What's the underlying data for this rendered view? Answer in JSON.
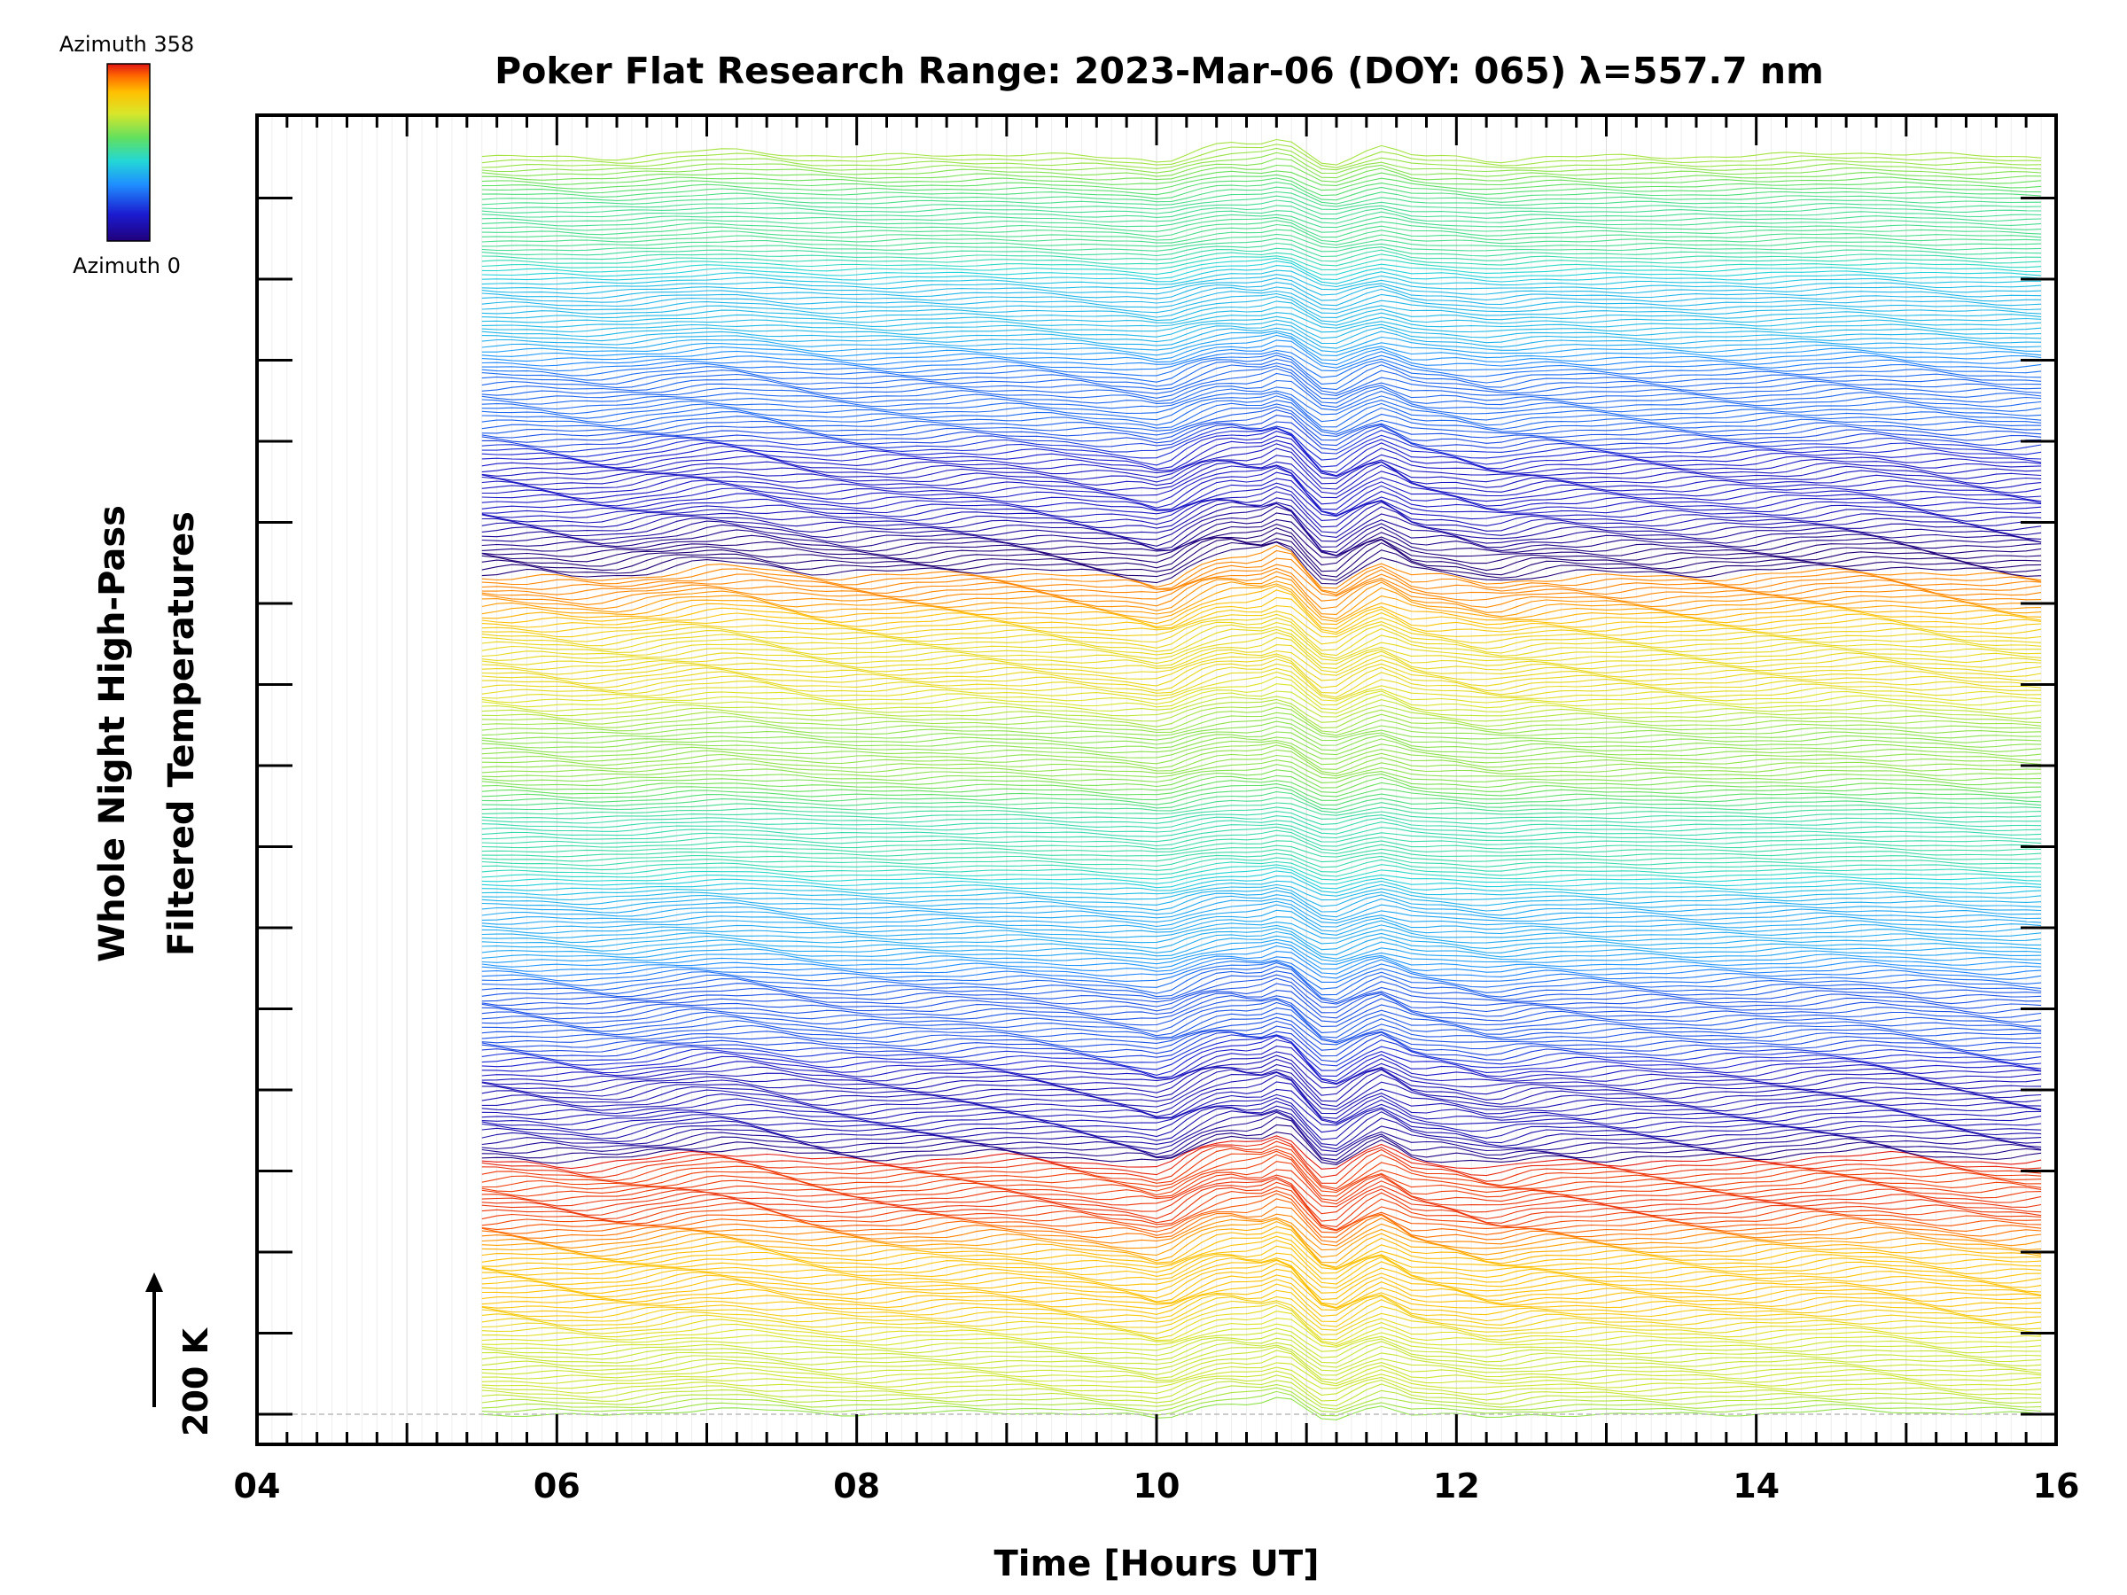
{
  "chart_data": {
    "type": "line",
    "title": "Poker Flat Research Range: 2023-Mar-06 (DOY: 065) λ=557.7 nm",
    "xlabel": "Time [Hours UT]",
    "ylabel_line1": "Whole Night High-Pass",
    "ylabel_line2": "Filtered Temperatures",
    "xlim": [
      4,
      16
    ],
    "x_tick_labels": [
      "04",
      "06",
      "08",
      "10",
      "12",
      "14",
      "16"
    ],
    "data_start_hour": 5.5,
    "data_end_hour": 15.9,
    "scale_bar_label": "200 K",
    "colorbar": {
      "top_label": "Azimuth 358",
      "bottom_label": "Azimuth 0"
    },
    "colors": [
      "#20007a",
      "#1b1bd0",
      "#1f8fff",
      "#22d7d7",
      "#60e060",
      "#d9e62a",
      "#ffc000",
      "#ff6a00",
      "#e01414"
    ],
    "grid": true
  }
}
